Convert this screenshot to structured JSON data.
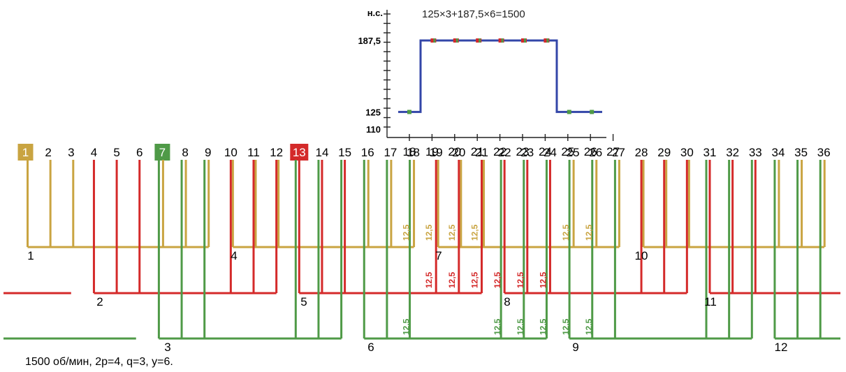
{
  "colors": {
    "phase_a": "#c9a441",
    "phase_b": "#d42a2a",
    "phase_c": "#4f9a47",
    "mmf_line": "#3346a8"
  },
  "chart": {
    "formula": "125×3+187,5×6=1500",
    "y_axis_label": "н.с.",
    "y_ticks": [
      "187,5",
      "125",
      "110"
    ],
    "x_ticks": [
      "18",
      "19",
      "20",
      "21",
      "22",
      "23",
      "24",
      "25",
      "26",
      "27"
    ],
    "mmf_levels": {
      "low": 125,
      "high": 187.5
    },
    "step_low_slots": [
      18,
      25,
      26
    ],
    "step_high_slots": [
      19,
      20,
      21,
      22,
      23,
      24
    ]
  },
  "slots": {
    "labels": [
      "1",
      "2",
      "3",
      "4",
      "5",
      "6",
      "7",
      "8",
      "9",
      "10",
      "11",
      "12",
      "13",
      "14",
      "15",
      "16",
      "17",
      "18",
      "19",
      "20",
      "21",
      "22",
      "23",
      "24",
      "25",
      "26",
      "27",
      "28",
      "29",
      "30",
      "31",
      "32",
      "33",
      "34",
      "35",
      "36"
    ],
    "highlighted": [
      {
        "slot": "1",
        "phase": "a"
      },
      {
        "slot": "7",
        "phase": "c"
      },
      {
        "slot": "13",
        "phase": "b"
      }
    ]
  },
  "coil_groups": [
    {
      "label": "1",
      "phase": "a"
    },
    {
      "label": "4",
      "phase": "a"
    },
    {
      "label": "7",
      "phase": "a"
    },
    {
      "label": "10",
      "phase": "a"
    },
    {
      "label": "2",
      "phase": "b"
    },
    {
      "label": "5",
      "phase": "b"
    },
    {
      "label": "8",
      "phase": "b"
    },
    {
      "label": "11",
      "phase": "b"
    },
    {
      "label": "3",
      "phase": "c"
    },
    {
      "label": "6",
      "phase": "c"
    },
    {
      "label": "9",
      "phase": "c"
    },
    {
      "label": "12",
      "phase": "c"
    }
  ],
  "value_label": "12,5",
  "caption": "1500 об/мин, 2p=4, q=3, y=6."
}
